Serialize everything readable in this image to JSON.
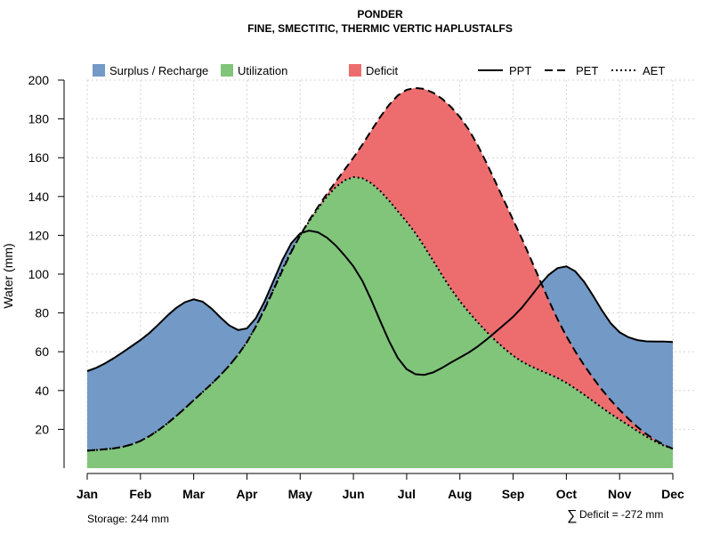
{
  "chart_data": {
    "type": "area",
    "title": "PONDER",
    "subtitle": "FINE, SMECTITIC, THERMIC VERTIC HAPLUSTALFS",
    "xlabel": "",
    "ylabel": "Water (mm)",
    "ylim": [
      0,
      200
    ],
    "yticks": [
      20,
      40,
      60,
      80,
      100,
      120,
      140,
      160,
      180,
      200
    ],
    "categories": [
      "Jan",
      "Feb",
      "Mar",
      "Apr",
      "May",
      "Jun",
      "Jul",
      "Aug",
      "Sep",
      "Oct",
      "Nov",
      "Dec"
    ],
    "series": [
      {
        "name": "PPT",
        "line_style": "solid",
        "values": [
          50,
          66,
          87,
          72,
          121,
          104,
          51,
          57,
          78,
          104,
          70,
          65
        ]
      },
      {
        "name": "PET",
        "line_style": "dashed",
        "values": [
          9,
          14,
          35,
          65,
          120,
          160,
          195,
          181,
          128,
          68,
          30,
          10
        ]
      },
      {
        "name": "AET",
        "line_style": "dotted",
        "values": [
          9,
          14,
          35,
          65,
          120,
          150,
          127,
          86,
          58,
          44,
          25,
          10
        ]
      }
    ],
    "legend": {
      "areas": [
        {
          "name": "Surplus / Recharge",
          "color": "#7399c6"
        },
        {
          "name": "Utilization",
          "color": "#80c57a"
        },
        {
          "name": "Deficit",
          "color": "#ed6d6e"
        }
      ],
      "lines": [
        "PPT",
        "PET",
        "AET"
      ],
      "placement": "top"
    },
    "annotations": {
      "storage": "Storage: 244 mm",
      "deficit_symbol": "∑",
      "deficit": "Deficit = -272 mm"
    },
    "grid": true
  }
}
